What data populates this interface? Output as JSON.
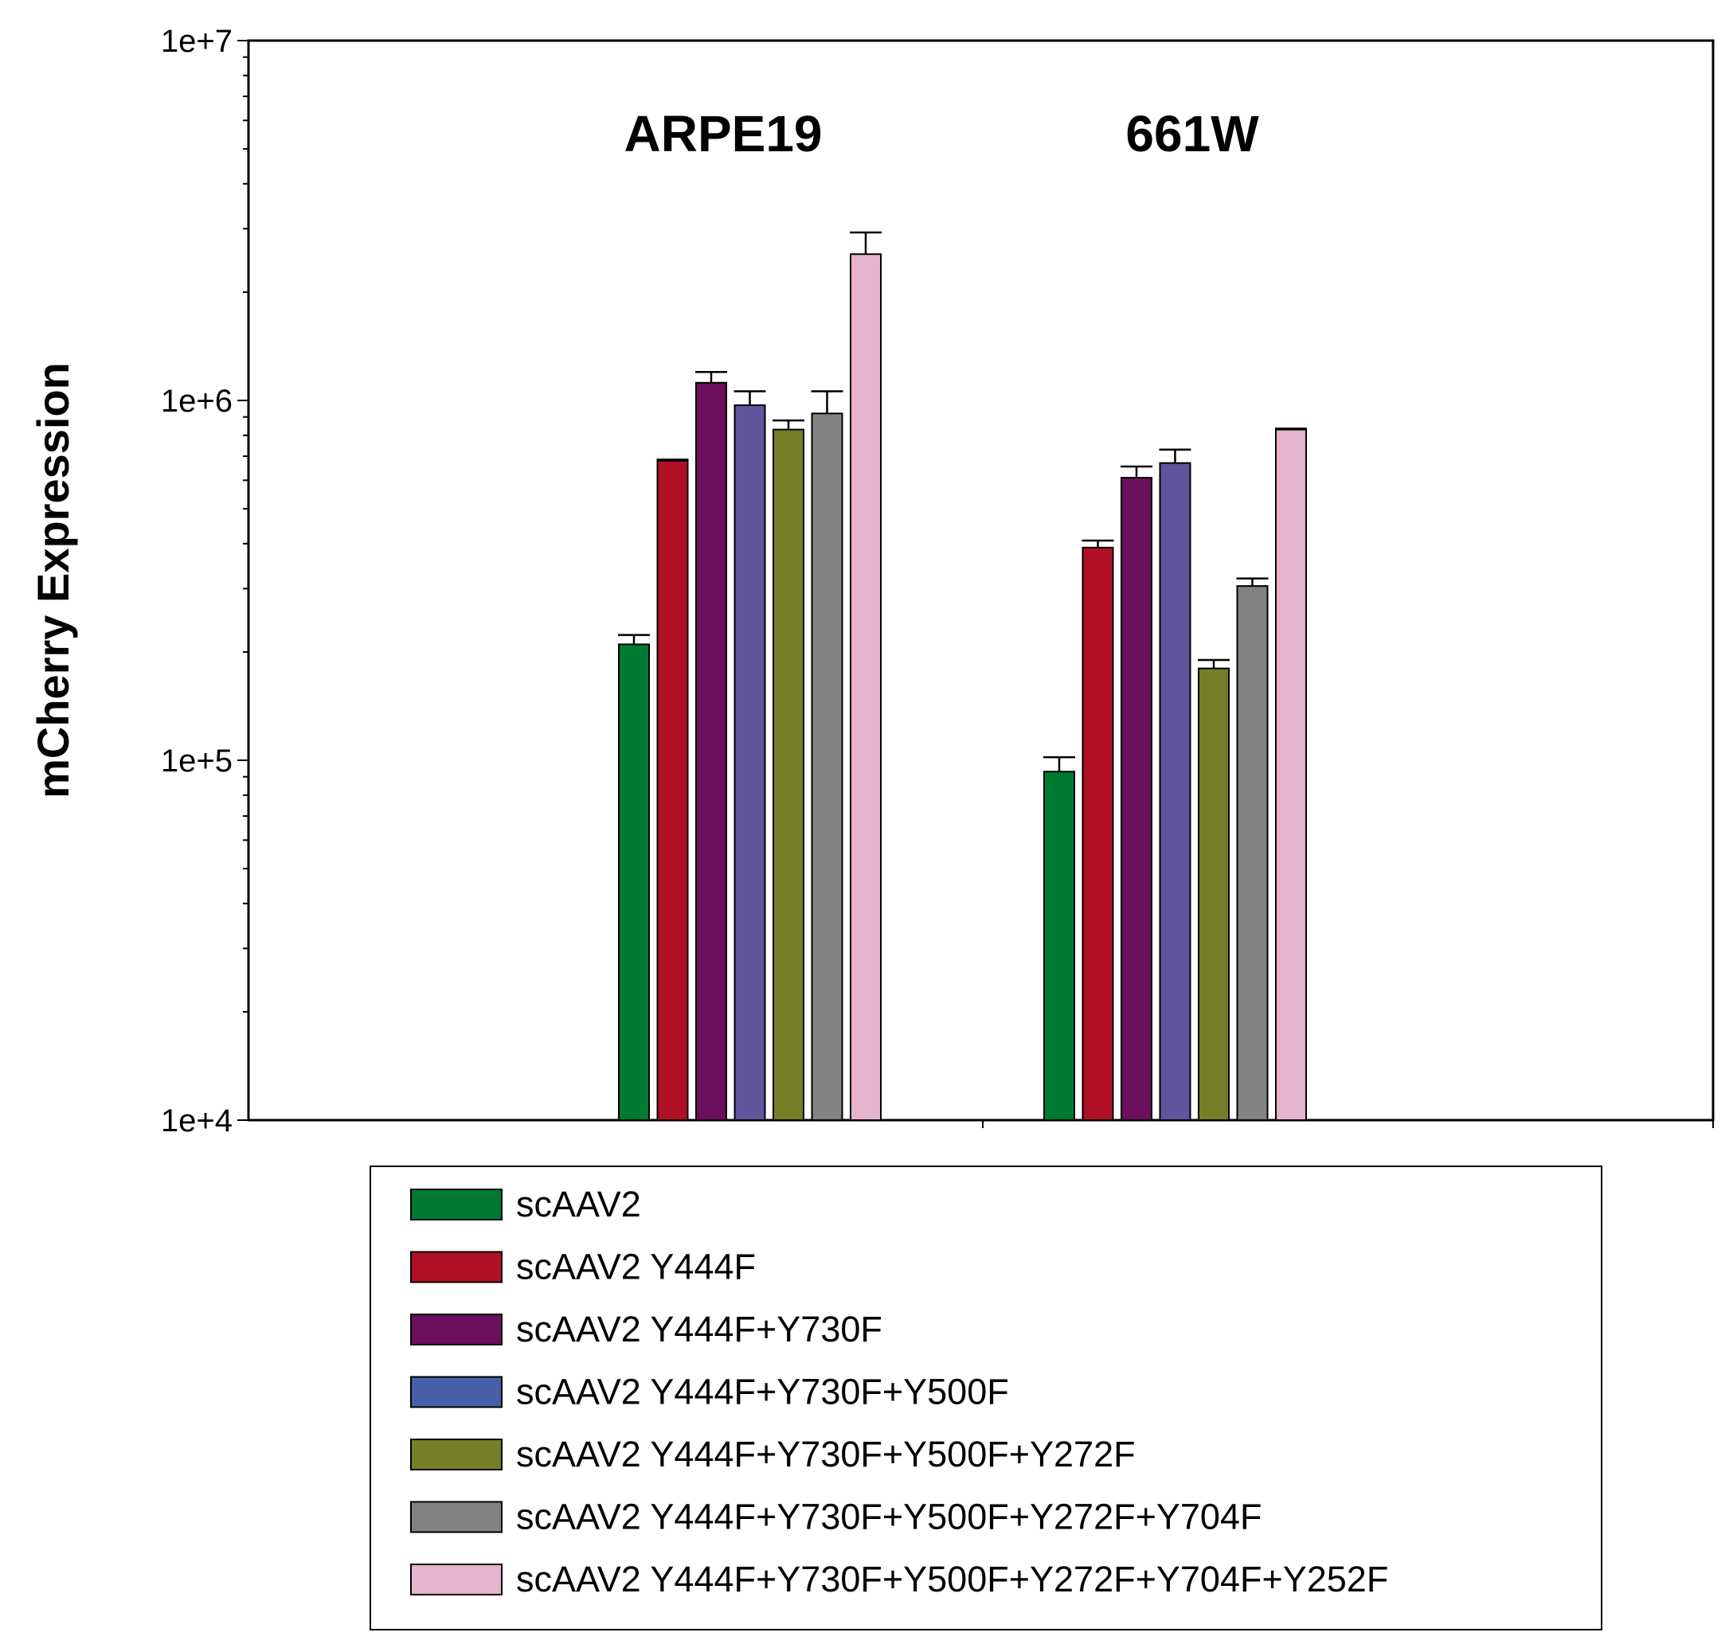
{
  "chart_data": {
    "type": "bar",
    "scale": "log",
    "title": "",
    "xlabel": "",
    "ylabel": "mCherry Expression",
    "ylim": [
      10000,
      10000000
    ],
    "yticks": [
      {
        "value": 10000,
        "label": "1e+4"
      },
      {
        "value": 100000,
        "label": "1e+5"
      },
      {
        "value": 1000000,
        "label": "1e+6"
      },
      {
        "value": 10000000,
        "label": "1e+7"
      }
    ],
    "categories": [
      "ARPE19",
      "661W"
    ],
    "series": [
      {
        "name": "scAAV2",
        "color": "#007A33",
        "values": [
          210000,
          93000
        ],
        "errors": [
          13000,
          9000
        ]
      },
      {
        "name": "scAAV2 Y444F",
        "color": "#B01025",
        "values": [
          680000,
          390000
        ],
        "errors": [
          5000,
          18000
        ]
      },
      {
        "name": "scAAV2 Y444F+Y730F",
        "color": "#6B0F5E",
        "values": [
          1120000,
          610000
        ],
        "errors": [
          80000,
          45000
        ]
      },
      {
        "name": "scAAV2 Y444F+Y730F+Y500F",
        "color": "#63549E",
        "legend_color": "#4760A8",
        "values": [
          970000,
          670000
        ],
        "errors": [
          90000,
          60000
        ]
      },
      {
        "name": "scAAV2 Y444F+Y730F+Y500F+Y272F",
        "color": "#757F27",
        "values": [
          830000,
          180000
        ],
        "errors": [
          50000,
          10000
        ]
      },
      {
        "name": "scAAV2 Y444F+Y730F+Y500F+Y272F+Y704F",
        "color": "#828282",
        "values": [
          920000,
          305000
        ],
        "errors": [
          140000,
          15000
        ]
      },
      {
        "name": "scAAV2 Y444F+Y730F+Y500F+Y272F+Y704F+Y252F",
        "color": "#E5B3CB",
        "values": [
          2550000,
          830000
        ],
        "errors": [
          380000,
          5000
        ]
      }
    ]
  }
}
